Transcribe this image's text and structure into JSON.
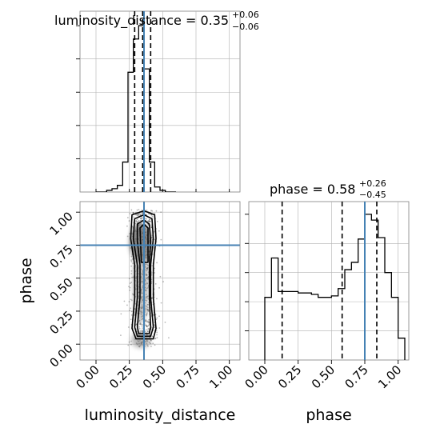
{
  "chart_data": {
    "type": "corner",
    "parameters": [
      "luminosity_distance",
      "phase"
    ],
    "truths": {
      "luminosity_distance": 0.36,
      "phase": 0.75
    },
    "truth_color": "#4682b4",
    "grid": true,
    "titles": [
      {
        "name": "luminosity_distance",
        "median": "0.35",
        "plus": "+0.06",
        "minus": "−0.06"
      },
      {
        "name": "phase",
        "median": "0.58",
        "plus": "+0.26",
        "minus": "−0.45"
      }
    ],
    "axis_labels": {
      "x_left": "luminosity_distance",
      "x_right": "phase",
      "y_left": "phase"
    },
    "tick_labels": [
      "0.00",
      "0.25",
      "0.50",
      "0.75",
      "1.00"
    ],
    "tick_values": [
      0,
      0.25,
      0.5,
      0.75,
      1.0
    ],
    "axis_range": [
      -0.12,
      1.08
    ],
    "marginal_luminosity_distance": {
      "bin_edges": [
        0.0,
        0.04,
        0.08,
        0.12,
        0.16,
        0.2,
        0.24,
        0.28,
        0.32,
        0.36,
        0.4,
        0.44,
        0.48,
        0.52,
        0.56,
        0.6
      ],
      "counts": [
        0,
        0,
        0.01,
        0.02,
        0.04,
        0.18,
        0.72,
        0.92,
        1.0,
        0.74,
        0.18,
        0.03,
        0.01,
        0,
        0
      ],
      "quantile_lines": [
        0.29,
        0.35,
        0.41
      ]
    },
    "marginal_phase": {
      "bin_edges": [
        0.0,
        0.05,
        0.1,
        0.15,
        0.2,
        0.25,
        0.3,
        0.35,
        0.4,
        0.45,
        0.5,
        0.55,
        0.6,
        0.65,
        0.7,
        0.75,
        0.8,
        0.85,
        0.9,
        0.95,
        1.0,
        1.05
      ],
      "counts": [
        0.43,
        0.7,
        0.47,
        0.47,
        0.47,
        0.46,
        0.46,
        0.45,
        0.43,
        0.43,
        0.44,
        0.49,
        0.62,
        0.67,
        0.83,
        1.0,
        0.96,
        0.84,
        0.6,
        0.43,
        0.15
      ],
      "quantile_lines": [
        0.13,
        0.58,
        0.84
      ]
    },
    "joint_contours": [
      [
        [
          0.3,
          0.04
        ],
        [
          0.43,
          0.04
        ],
        [
          0.45,
          0.12
        ],
        [
          0.43,
          0.35
        ],
        [
          0.43,
          0.6
        ],
        [
          0.45,
          0.8
        ],
        [
          0.44,
          0.98
        ],
        [
          0.36,
          1.01
        ],
        [
          0.27,
          0.98
        ],
        [
          0.26,
          0.8
        ],
        [
          0.29,
          0.6
        ],
        [
          0.29,
          0.35
        ],
        [
          0.27,
          0.12
        ]
      ],
      [
        [
          0.31,
          0.06
        ],
        [
          0.41,
          0.06
        ],
        [
          0.43,
          0.13
        ],
        [
          0.41,
          0.35
        ],
        [
          0.41,
          0.6
        ],
        [
          0.43,
          0.8
        ],
        [
          0.42,
          0.95
        ],
        [
          0.36,
          0.98
        ],
        [
          0.29,
          0.95
        ],
        [
          0.28,
          0.8
        ],
        [
          0.31,
          0.6
        ],
        [
          0.31,
          0.35
        ],
        [
          0.29,
          0.13
        ]
      ],
      [
        [
          0.32,
          0.08
        ],
        [
          0.4,
          0.08
        ],
        [
          0.41,
          0.13
        ],
        [
          0.4,
          0.35
        ],
        [
          0.4,
          0.6
        ],
        [
          0.41,
          0.78
        ],
        [
          0.4,
          0.91
        ],
        [
          0.36,
          0.94
        ],
        [
          0.31,
          0.91
        ],
        [
          0.31,
          0.78
        ],
        [
          0.33,
          0.6
        ],
        [
          0.33,
          0.35
        ],
        [
          0.31,
          0.13
        ]
      ],
      [
        [
          0.34,
          0.62
        ],
        [
          0.39,
          0.62
        ],
        [
          0.39,
          0.88
        ],
        [
          0.36,
          0.91
        ],
        [
          0.33,
          0.88
        ]
      ]
    ]
  }
}
